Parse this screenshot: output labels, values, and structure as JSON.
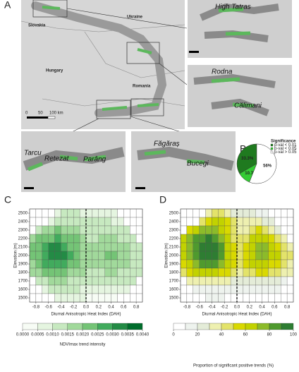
{
  "panel_labels": [
    "A",
    "B",
    "C",
    "D"
  ],
  "map": {
    "labels": [
      "Slovakia",
      "Ukraine",
      "Hungary",
      "Romania",
      "High Tatras",
      "Rodna",
      "Călimani",
      "Tarcu",
      "Retezat",
      "Parâng",
      "Făgăraș",
      "Bucegi"
    ],
    "scale": [
      "0",
      "50",
      "100 km"
    ]
  },
  "chart_data": [
    {
      "type": "pie",
      "title": "Significance",
      "categories": [
        "p-val < 0.01",
        "p-val < 0.05",
        "p-val > 0.05"
      ],
      "values": [
        33.3,
        10.7,
        56
      ],
      "value_labels": [
        "33.3%",
        "10.7%",
        "56%"
      ],
      "colors": [
        "#1f7a1f",
        "#33cc33",
        "#ffffff"
      ]
    },
    {
      "type": "heatmap",
      "xlabel": "Diurnal Anisotropic Heat Index (DAH)",
      "ylabel": "Elevation (m)",
      "colorbar_label": "NDVImax trend intensity",
      "x": [
        -0.85,
        -0.75,
        -0.65,
        -0.55,
        -0.45,
        -0.35,
        -0.25,
        -0.15,
        -0.05,
        0.05,
        0.15,
        0.25,
        0.35,
        0.45,
        0.55,
        0.65,
        0.75,
        0.85
      ],
      "y": [
        2500,
        2400,
        2300,
        2200,
        2100,
        2000,
        1900,
        1800,
        1700,
        1600,
        1500
      ],
      "values": [
        [
          null,
          null,
          null,
          null,
          0.0008,
          0.001,
          0.001,
          0.001,
          0.0008,
          0.0008,
          0.0008,
          0.0008,
          0.0006,
          0.0006,
          null,
          null,
          null,
          null
        ],
        [
          null,
          null,
          null,
          0.0008,
          0.0012,
          0.0012,
          0.0014,
          0.0012,
          0.0012,
          0.001,
          0.001,
          0.001,
          0.001,
          0.0008,
          0.0008,
          null,
          null,
          null
        ],
        [
          null,
          0.0014,
          0.0016,
          0.0018,
          0.002,
          0.0018,
          0.0018,
          0.0016,
          0.0014,
          0.0012,
          0.0012,
          0.0012,
          0.0014,
          0.0012,
          0.0012,
          0.001,
          null,
          null
        ],
        [
          0.0018,
          0.002,
          0.0022,
          0.0024,
          0.0026,
          0.0024,
          0.0022,
          0.002,
          0.0016,
          0.0014,
          0.0014,
          0.0016,
          0.0016,
          0.0016,
          0.0014,
          0.0014,
          0.0012,
          null
        ],
        [
          0.002,
          0.0022,
          0.0026,
          0.003,
          0.003,
          0.0028,
          0.0024,
          0.002,
          0.0018,
          0.0016,
          0.0016,
          0.0018,
          0.0018,
          0.0018,
          0.0016,
          0.0016,
          0.0014,
          0.0012
        ],
        [
          0.002,
          0.0024,
          0.0028,
          0.0032,
          0.0032,
          0.003,
          0.0026,
          0.0022,
          0.0018,
          0.0016,
          0.0016,
          0.0018,
          0.002,
          0.002,
          0.0018,
          0.0016,
          0.0014,
          0.0014
        ],
        [
          0.0018,
          0.0022,
          0.0026,
          0.0028,
          0.0028,
          0.0026,
          0.0024,
          0.002,
          0.0018,
          0.0016,
          0.0016,
          0.0016,
          0.0018,
          0.0018,
          0.0016,
          0.0016,
          0.0014,
          0.0012
        ],
        [
          0.0016,
          0.0018,
          0.002,
          0.0022,
          0.0022,
          0.002,
          0.0018,
          0.0018,
          0.0016,
          0.0014,
          0.0014,
          0.0014,
          0.0016,
          0.0016,
          0.0014,
          0.0014,
          0.0012,
          0.0012
        ],
        [
          null,
          0.0012,
          0.0014,
          0.0016,
          0.0016,
          0.0016,
          0.0014,
          0.0014,
          0.0012,
          0.0012,
          0.0012,
          0.0012,
          0.0012,
          0.0012,
          0.0012,
          0.001,
          0.001,
          null
        ],
        [
          null,
          null,
          0.0008,
          0.001,
          0.001,
          0.001,
          0.001,
          0.001,
          0.0008,
          0.0008,
          0.0008,
          0.0008,
          0.0008,
          0.0008,
          0.0008,
          0.0006,
          null,
          null
        ],
        [
          null,
          null,
          null,
          null,
          0.0006,
          0.0006,
          0.0006,
          0.0006,
          0.0006,
          0.0004,
          0.0004,
          0.0004,
          0.0004,
          0.0004,
          null,
          null,
          null,
          null
        ]
      ],
      "xlim": [
        -0.9,
        0.9
      ],
      "ylim": [
        1450,
        2550
      ],
      "xticks": [
        -0.8,
        -0.6,
        -0.4,
        -0.2,
        {
          "value": 0,
          "label": "0.0"
        },
        0.2,
        0.4,
        0.6,
        0.8
      ],
      "yticks": [
        1500,
        1600,
        1700,
        1800,
        1900,
        2000,
        2100,
        2200,
        2300,
        2400,
        2500
      ],
      "vline": 0,
      "clim": [
        0,
        0.004
      ],
      "colors": [
        "#f7fcf5",
        "#e5f5e0",
        "#c7e9c0",
        "#a1d99b",
        "#74c476",
        "#41ab5d",
        "#238b45",
        "#006d2c"
      ],
      "cticks": [
        {
          "value": 0,
          "label": "0.0000"
        },
        {
          "value": 0.0005,
          "label": "0.0005"
        },
        {
          "value": 0.001,
          "label": "0.0010"
        },
        {
          "value": 0.0015,
          "label": "0.0015"
        },
        {
          "value": 0.002,
          "label": "0.0020"
        },
        {
          "value": 0.0025,
          "label": "0.0025"
        },
        {
          "value": 0.003,
          "label": "0.0030"
        },
        {
          "value": 0.0035,
          "label": "0.0035"
        },
        {
          "value": 0.004,
          "label": "0.0040"
        }
      ]
    },
    {
      "type": "heatmap",
      "xlabel": "Diurnal Anisotropic Heat Index (DAH)",
      "ylabel": "Elevation (m)",
      "colorbar_label": "Proportion of significant positive trends (%)",
      "x": [
        -0.85,
        -0.75,
        -0.65,
        -0.55,
        -0.45,
        -0.35,
        -0.25,
        -0.15,
        -0.05,
        0.05,
        0.15,
        0.25,
        0.35,
        0.45,
        0.55,
        0.65,
        0.75,
        0.85
      ],
      "y": [
        2500,
        2400,
        2300,
        2200,
        2100,
        2000,
        1900,
        1800,
        1700,
        1600,
        1500
      ],
      "values": [
        [
          null,
          null,
          null,
          null,
          30,
          40,
          40,
          30,
          20,
          20,
          20,
          20,
          10,
          10,
          null,
          null,
          null,
          null
        ],
        [
          null,
          null,
          null,
          40,
          50,
          60,
          60,
          50,
          40,
          30,
          30,
          30,
          30,
          20,
          20,
          null,
          null,
          null
        ],
        [
          null,
          50,
          60,
          70,
          70,
          70,
          60,
          50,
          40,
          30,
          30,
          40,
          50,
          40,
          30,
          20,
          null,
          null
        ],
        [
          60,
          70,
          80,
          80,
          90,
          80,
          70,
          60,
          40,
          40,
          40,
          60,
          60,
          60,
          50,
          40,
          30,
          null
        ],
        [
          60,
          70,
          80,
          90,
          90,
          90,
          80,
          60,
          50,
          40,
          50,
          60,
          70,
          70,
          60,
          50,
          40,
          30
        ],
        [
          60,
          70,
          80,
          90,
          90,
          90,
          80,
          60,
          50,
          40,
          50,
          60,
          70,
          70,
          60,
          60,
          40,
          40
        ],
        [
          50,
          60,
          70,
          80,
          80,
          80,
          70,
          60,
          50,
          40,
          50,
          60,
          60,
          60,
          50,
          50,
          40,
          30
        ],
        [
          40,
          50,
          60,
          60,
          60,
          60,
          50,
          50,
          40,
          30,
          40,
          40,
          50,
          50,
          40,
          40,
          30,
          30
        ],
        [
          null,
          30,
          30,
          30,
          30,
          30,
          30,
          30,
          20,
          20,
          20,
          20,
          20,
          20,
          20,
          20,
          10,
          null
        ],
        [
          null,
          null,
          10,
          10,
          10,
          10,
          10,
          10,
          10,
          10,
          10,
          10,
          10,
          10,
          10,
          10,
          null,
          null
        ],
        [
          null,
          null,
          null,
          null,
          10,
          10,
          10,
          0,
          0,
          0,
          0,
          0,
          0,
          0,
          null,
          null,
          null,
          null
        ]
      ],
      "xlim": [
        -0.9,
        0.9
      ],
      "ylim": [
        1450,
        2550
      ],
      "xticks": [
        -0.8,
        -0.6,
        -0.4,
        -0.2,
        {
          "value": 0,
          "label": "0.0"
        },
        0.2,
        0.4,
        0.6,
        0.8
      ],
      "yticks": [
        1500,
        1600,
        1700,
        1800,
        1900,
        2000,
        2100,
        2200,
        2300,
        2400,
        2500
      ],
      "vline": 0,
      "clim": [
        0,
        100
      ],
      "colors": [
        "#ffffff",
        "#eef3ee",
        "#e4ecd8",
        "#eef0b0",
        "#e3e36a",
        "#d9d900",
        "#c2d200",
        "#8cbb2a",
        "#4f9a2e",
        "#2e7d32"
      ],
      "cticks": [
        0,
        20,
        40,
        60,
        80,
        100
      ]
    }
  ]
}
